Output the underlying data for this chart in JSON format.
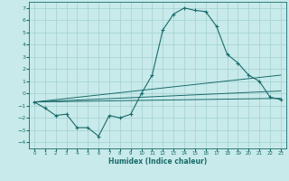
{
  "title": "",
  "xlabel": "Humidex (Indice chaleur)",
  "ylabel": "",
  "background_color": "#c8eaea",
  "grid_color": "#a8d4d4",
  "line_color": "#1a6b6b",
  "xlim": [
    -0.5,
    23.5
  ],
  "ylim": [
    -4.5,
    7.5
  ],
  "xticks": [
    0,
    1,
    2,
    3,
    4,
    5,
    6,
    7,
    8,
    9,
    10,
    11,
    12,
    13,
    14,
    15,
    16,
    17,
    18,
    19,
    20,
    21,
    22,
    23
  ],
  "yticks": [
    -4,
    -3,
    -2,
    -1,
    0,
    1,
    2,
    3,
    4,
    5,
    6,
    7
  ],
  "line1_x": [
    0,
    1,
    2,
    3,
    4,
    5,
    6,
    7,
    8,
    9,
    10,
    11,
    12,
    13,
    14,
    15,
    16,
    17,
    18,
    19,
    20,
    21,
    22,
    23
  ],
  "line1_y": [
    -0.7,
    -1.2,
    -1.8,
    -1.7,
    -2.8,
    -2.8,
    -3.5,
    -1.8,
    -2.0,
    -1.7,
    0.0,
    1.5,
    5.2,
    6.5,
    7.0,
    6.8,
    6.7,
    5.5,
    3.2,
    2.5,
    1.5,
    1.0,
    -0.3,
    -0.5
  ],
  "line2_x": [
    0,
    23
  ],
  "line2_y": [
    -0.7,
    -0.4
  ],
  "line3_x": [
    0,
    23
  ],
  "line3_y": [
    -0.7,
    1.5
  ],
  "line4_x": [
    0,
    23
  ],
  "line4_y": [
    -0.7,
    0.2
  ]
}
